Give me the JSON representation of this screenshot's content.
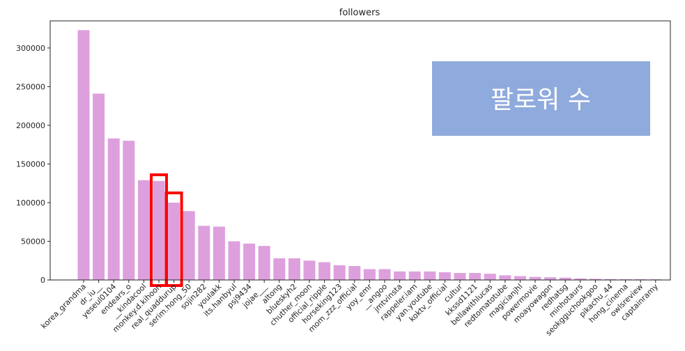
{
  "chart_data": {
    "type": "bar",
    "title": "followers",
    "xlabel": "",
    "ylabel": "",
    "ylim": [
      0,
      335000
    ],
    "yticks": [
      0,
      50000,
      100000,
      150000,
      200000,
      250000,
      300000
    ],
    "grid": false,
    "bar_color": "#dda0dd",
    "categories": [
      "korea_grandma",
      "dr_iu__",
      "yeseul0104",
      "endears_o",
      "__kindacool",
      "monkey.d.kihoon",
      "real_quaddurup",
      "serim.hong_50",
      "sojin282",
      "youlakk",
      "its.hanbyul",
      "psj9434",
      "jojae___",
      "altong",
      "blueskyh2",
      "chuther_moon",
      "official_ripple",
      "horseking123",
      "mom_zzz_official",
      "yoy_emr",
      "__angoo",
      "jmtvinsta",
      "rappeler.iam",
      "yan.youtube",
      "koktv_official",
      "cultur",
      "kkssd1121",
      "bellawithlucas",
      "redtomatotube",
      "magicianjhl",
      "powermovie",
      "moayowagon",
      "redhatsg",
      "minhotaurs",
      "seokgguchookgoo",
      "pikachu_44",
      "hong_cinema",
      "owlsreview",
      "captainramy"
    ],
    "values": [
      323000,
      241000,
      183000,
      180000,
      129000,
      128000,
      100000,
      89000,
      70000,
      69000,
      50000,
      47000,
      44000,
      28000,
      28000,
      25000,
      23000,
      19000,
      18000,
      14000,
      14000,
      11000,
      11000,
      11000,
      10000,
      9000,
      9000,
      8000,
      6000,
      5000,
      4000,
      3500,
      3000,
      2000,
      1500,
      1200,
      1000,
      1000,
      900
    ],
    "highlight_indices": [
      5,
      6
    ],
    "highlight_color": "#ff0000",
    "annotation": {
      "text": "팔로워 수",
      "background": "#8faadc",
      "text_color": "#ffffff"
    }
  }
}
